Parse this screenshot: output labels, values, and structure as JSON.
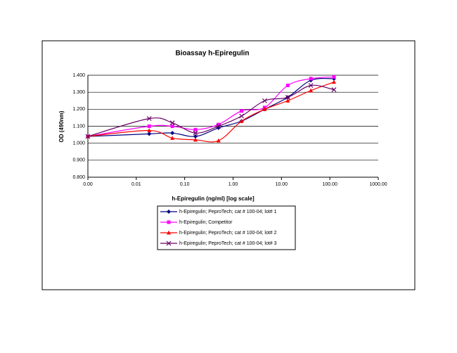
{
  "chart_data": {
    "type": "line",
    "title": "Bioassay h-Epiregulin",
    "x_label": "h-Epiregulin (ng/ml) [log scale]",
    "y_label": "OD (490nm)",
    "x": [
      0.001,
      0.0185,
      0.0556,
      0.167,
      0.5,
      1.5,
      4.5,
      13.5,
      40.5,
      121.5
    ],
    "series": [
      {
        "name": "h-Epiregulin; PeproTech; cat # 100-04; lot# 1",
        "color": "#000080",
        "marker": "diamond",
        "values": [
          1.04,
          1.055,
          1.06,
          1.04,
          1.09,
          1.13,
          1.2,
          1.27,
          1.37,
          1.38
        ]
      },
      {
        "name": "h-Epiregulin; Competitor",
        "color": "#ff00ff",
        "marker": "square",
        "values": [
          1.04,
          1.1,
          1.1,
          1.08,
          1.11,
          1.19,
          1.21,
          1.34,
          1.38,
          1.39
        ]
      },
      {
        "name": "h-Epiregulin; PeproTech; cat # 100-04; lot# 2",
        "color": "#ff0000",
        "marker": "triangle",
        "values": [
          1.04,
          1.075,
          1.03,
          1.02,
          1.015,
          1.13,
          1.2,
          1.25,
          1.31,
          1.36
        ]
      },
      {
        "name": "h-Epiregulin; PeproTech; cat # 100-04; lot# 3",
        "color": "#660066",
        "marker": "x",
        "values": [
          1.04,
          1.145,
          1.12,
          1.06,
          1.1,
          1.16,
          1.25,
          1.27,
          1.34,
          1.315
        ]
      }
    ],
    "xlim": [
      0.001,
      1000
    ],
    "log_x": true,
    "xticks": [
      {
        "value": 0.001,
        "label": "0.00"
      },
      {
        "value": 0.01,
        "label": "0.01"
      },
      {
        "value": 0.1,
        "label": "0.10"
      },
      {
        "value": 1,
        "label": "1.00"
      },
      {
        "value": 10,
        "label": "10.00"
      },
      {
        "value": 100,
        "label": "100.00"
      },
      {
        "value": 1000,
        "label": "1000.00"
      }
    ],
    "ylim": [
      0.8,
      1.4
    ],
    "yticks": [
      {
        "value": 0.8,
        "label": "0.800"
      },
      {
        "value": 0.9,
        "label": "0.900"
      },
      {
        "value": 1.0,
        "label": "1.000"
      },
      {
        "value": 1.1,
        "label": "1.100"
      },
      {
        "value": 1.2,
        "label": "1.200"
      },
      {
        "value": 1.3,
        "label": "1.300"
      },
      {
        "value": 1.4,
        "label": "1.400"
      }
    ],
    "grid": true
  }
}
